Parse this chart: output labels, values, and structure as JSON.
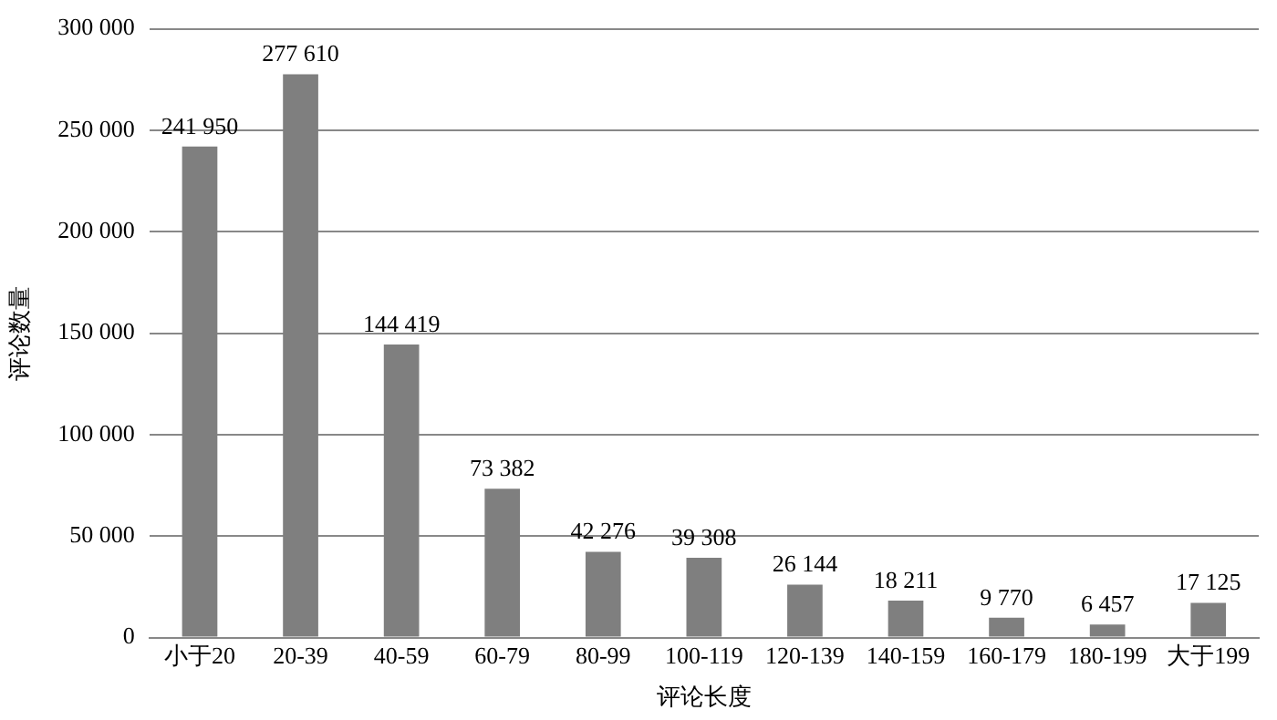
{
  "chart_data": {
    "type": "bar",
    "xlabel": "评论长度",
    "ylabel": "评论数量",
    "categories": [
      "小于20",
      "20-39",
      "40-59",
      "60-79",
      "80-99",
      "100-119",
      "120-139",
      "140-159",
      "160-179",
      "180-199",
      "大于199"
    ],
    "values": [
      241950,
      277610,
      144419,
      73382,
      42276,
      39308,
      26144,
      18211,
      9770,
      6457,
      17125
    ],
    "value_labels": [
      "241 950",
      "277 610",
      "144 419",
      "73 382",
      "42 276",
      "39 308",
      "26 144",
      "18 211",
      "9 770",
      "6 457",
      "17 125"
    ],
    "color": "#7f7f7f",
    "ylim": [
      0,
      300000
    ],
    "yticks": [
      {
        "value": 0,
        "label": "0"
      },
      {
        "value": 50000,
        "label": "50 000"
      },
      {
        "value": 100000,
        "label": "100 000"
      },
      {
        "value": 150000,
        "label": "150 000"
      },
      {
        "value": 200000,
        "label": "200 000"
      },
      {
        "value": 250000,
        "label": "250 000"
      },
      {
        "value": 300000,
        "label": "300 000"
      }
    ],
    "grid": "y",
    "legend": false
  }
}
